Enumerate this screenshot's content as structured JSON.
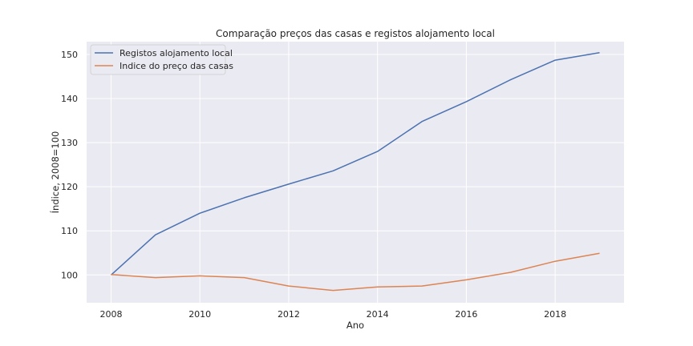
{
  "chart_data": {
    "type": "line",
    "title": "Comparação preços das casas e registos alojamento local",
    "xlabel": "Ano",
    "ylabel": "Índice, 2008=100",
    "x": [
      2008,
      2009,
      2010,
      2011,
      2012,
      2013,
      2014,
      2015,
      2016,
      2017,
      2018,
      2019
    ],
    "xlim": [
      2007.45,
      2019.55
    ],
    "ylim": [
      93.7,
      152.9
    ],
    "xticks": [
      2008,
      2010,
      2012,
      2014,
      2016,
      2018
    ],
    "yticks": [
      100,
      110,
      120,
      130,
      140,
      150
    ],
    "grid": true,
    "legend_position": "top-left",
    "series": [
      {
        "name": "Registos alojamento local",
        "color": "#4c72b0",
        "values": [
          100,
          109.1,
          114.0,
          117.5,
          120.6,
          123.6,
          128.0,
          134.8,
          139.3,
          144.3,
          148.7,
          150.4
        ]
      },
      {
        "name": "Indice do preço das casas",
        "color": "#dd8452",
        "values": [
          100.1,
          99.4,
          99.8,
          99.4,
          97.5,
          96.5,
          97.3,
          97.5,
          98.9,
          100.6,
          103.1,
          104.9
        ]
      }
    ]
  },
  "colors": {
    "plot_background": "#eaeaf2",
    "grid": "#ffffff",
    "text": "#262626"
  }
}
